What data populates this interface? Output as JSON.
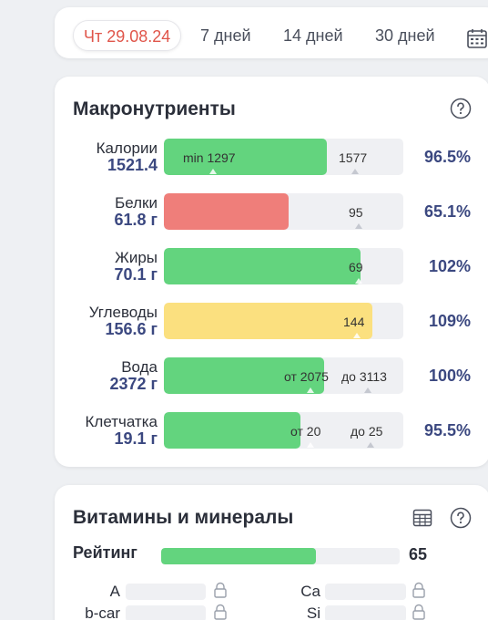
{
  "date_tabs": [
    {
      "label": "Чт 29.08.24",
      "active": true
    },
    {
      "label": "7 дней",
      "active": false
    },
    {
      "label": "14 дней",
      "active": false
    },
    {
      "label": "30 дней",
      "active": false
    }
  ],
  "colors": {
    "green": "#63d47e",
    "red": "#ef7e7a",
    "yellow": "#fbe07f",
    "accent_blue": "#3b4880",
    "active_tab": "#e0554a"
  },
  "macros": {
    "title": "Макронутриенты",
    "rows": [
      {
        "name": "Калории",
        "value": "1521.4",
        "pct": "96.5%",
        "fill": 0.68,
        "color": "green",
        "marks": [
          {
            "text": "min 1297",
            "pos": 0.08
          },
          {
            "text": "1577",
            "pos": 0.73
          }
        ]
      },
      {
        "name": "Белки",
        "value": "61.8 г",
        "pct": "65.1%",
        "fill": 0.52,
        "color": "red",
        "marks": [
          {
            "text": "95",
            "pos": 0.77
          }
        ]
      },
      {
        "name": "Жиры",
        "value": "70.1 г",
        "pct": "102%",
        "fill": 0.82,
        "color": "green",
        "marks": [
          {
            "text": "69",
            "pos": 0.77
          }
        ]
      },
      {
        "name": "Углеводы",
        "value": "156.6 г",
        "pct": "109%",
        "fill": 0.87,
        "color": "yellow",
        "marks": [
          {
            "text": "144",
            "pos": 0.75
          }
        ]
      },
      {
        "name": "Вода",
        "value": "2372 г",
        "pct": "100%",
        "fill": 0.67,
        "color": "green",
        "marks": [
          {
            "text": "от 2075",
            "pos": 0.5
          },
          {
            "text": "до 3113",
            "pos": 0.74
          }
        ]
      },
      {
        "name": "Клетчатка",
        "value": "19.1 г",
        "pct": "95.5%",
        "fill": 0.57,
        "color": "green",
        "marks": [
          {
            "text": "от 20",
            "pos": 0.53
          },
          {
            "text": "до 25",
            "pos": 0.78
          }
        ]
      }
    ]
  },
  "vitamins": {
    "title": "Витамины и минералы",
    "rating_label": "Рейтинг",
    "rating_value": "65",
    "rating_fill": 0.65,
    "nutrients_left": [
      "A",
      "b-car"
    ],
    "nutrients_right": [
      "Ca",
      "Si"
    ]
  }
}
